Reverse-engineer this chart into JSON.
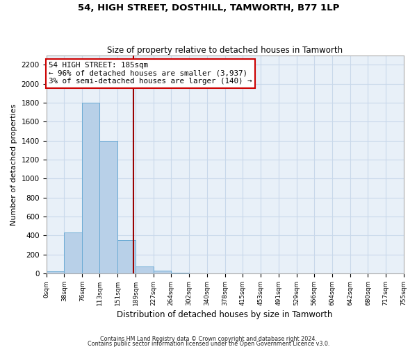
{
  "title": "54, HIGH STREET, DOSTHILL, TAMWORTH, B77 1LP",
  "subtitle": "Size of property relative to detached houses in Tamworth",
  "xlabel": "Distribution of detached houses by size in Tamworth",
  "ylabel": "Number of detached properties",
  "bar_edges": [
    0,
    38,
    76,
    113,
    151,
    189,
    227,
    264,
    302,
    340,
    378,
    415,
    453,
    491,
    529,
    566,
    604,
    642,
    680,
    717,
    755
  ],
  "bar_heights": [
    20,
    430,
    1800,
    1400,
    350,
    75,
    30,
    5,
    0,
    0,
    0,
    0,
    0,
    0,
    0,
    0,
    0,
    0,
    0,
    0
  ],
  "bar_color": "#b8d0e8",
  "bar_edge_color": "#6aaad4",
  "grid_color": "#c8d8ea",
  "red_line_x": 185,
  "annotation_line1": "54 HIGH STREET: 185sqm",
  "annotation_line2": "← 96% of detached houses are smaller (3,937)",
  "annotation_line3": "3% of semi-detached houses are larger (140) →",
  "annotation_box_facecolor": "#ffffff",
  "annotation_box_edgecolor": "#cc0000",
  "ylim": [
    0,
    2300
  ],
  "yticks": [
    0,
    200,
    400,
    600,
    800,
    1000,
    1200,
    1400,
    1600,
    1800,
    2000,
    2200
  ],
  "tick_labels": [
    "0sqm",
    "38sqm",
    "76sqm",
    "113sqm",
    "151sqm",
    "189sqm",
    "227sqm",
    "264sqm",
    "302sqm",
    "340sqm",
    "378sqm",
    "415sqm",
    "453sqm",
    "491sqm",
    "529sqm",
    "566sqm",
    "604sqm",
    "642sqm",
    "680sqm",
    "717sqm",
    "755sqm"
  ],
  "footer1": "Contains HM Land Registry data © Crown copyright and database right 2024.",
  "footer2": "Contains public sector information licensed under the Open Government Licence v3.0.",
  "background_color": "#ffffff",
  "plot_bg_color": "#e8f0f8"
}
